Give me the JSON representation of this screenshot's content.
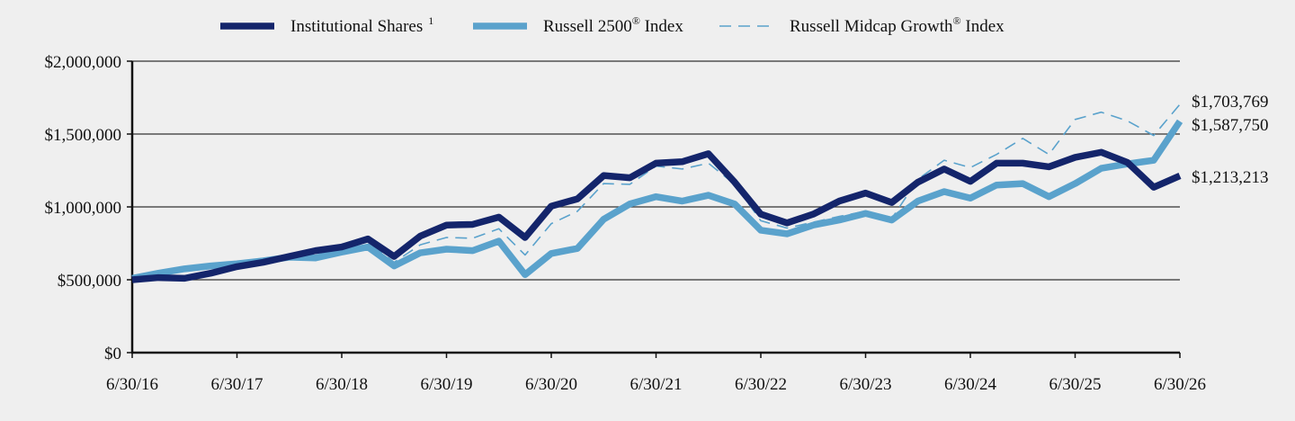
{
  "chart_data": {
    "type": "line",
    "x": [
      "6/30/16",
      "9/30/16",
      "12/31/16",
      "3/31/17",
      "6/30/17",
      "9/30/17",
      "12/31/17",
      "3/31/18",
      "6/30/18",
      "9/30/18",
      "12/31/18",
      "3/31/19",
      "6/30/19",
      "9/30/19",
      "12/31/19",
      "3/31/20",
      "6/30/20",
      "9/30/20",
      "12/31/20",
      "3/31/21",
      "6/30/21",
      "9/30/21",
      "12/31/21",
      "3/31/22",
      "6/30/22",
      "9/30/22",
      "12/31/22",
      "3/31/23",
      "6/30/23",
      "9/30/23",
      "12/31/23",
      "3/31/24",
      "6/30/24",
      "9/30/24",
      "12/31/24",
      "3/31/25",
      "6/30/25",
      "9/30/25",
      "12/31/25",
      "3/31/26",
      "6/30/26"
    ],
    "x_tick_labels": [
      "6/30/16",
      "6/30/17",
      "6/30/18",
      "6/30/19",
      "6/30/20",
      "6/30/21",
      "6/30/22",
      "6/30/23",
      "6/30/24",
      "6/30/25",
      "6/30/26"
    ],
    "y_tick_labels": [
      "$0",
      "$500,000",
      "$1,000,000",
      "$1,500,000",
      "$2,000,000"
    ],
    "ylim": [
      0,
      2000000
    ],
    "grid": true,
    "legend_position": "top",
    "series": [
      {
        "name": "Institutional Shares",
        "name_superscript": "1",
        "color": "#14256b",
        "style": "solid-thick",
        "end_label": "$1,213,213",
        "values": [
          500000,
          515000,
          510000,
          545000,
          590000,
          620000,
          660000,
          700000,
          725000,
          780000,
          660000,
          800000,
          875000,
          880000,
          930000,
          790000,
          1005000,
          1055000,
          1215000,
          1200000,
          1300000,
          1310000,
          1365000,
          1170000,
          950000,
          890000,
          950000,
          1040000,
          1095000,
          1030000,
          1170000,
          1260000,
          1175000,
          1300000,
          1300000,
          1275000,
          1340000,
          1375000,
          1305000,
          1135000,
          1213213
        ]
      },
      {
        "name": "Russell 2500",
        "name_registered": "®",
        "name_suffix": " Index",
        "color": "#5aa2cc",
        "style": "solid-medium",
        "end_label": "$1,587,750",
        "values": [
          510000,
          545000,
          575000,
          595000,
          610000,
          630000,
          655000,
          650000,
          690000,
          725000,
          595000,
          685000,
          710000,
          700000,
          765000,
          535000,
          680000,
          715000,
          915000,
          1020000,
          1070000,
          1040000,
          1080000,
          1020000,
          840000,
          815000,
          875000,
          910000,
          955000,
          910000,
          1040000,
          1105000,
          1060000,
          1150000,
          1160000,
          1070000,
          1160000,
          1265000,
          1295000,
          1320000,
          1587750
        ]
      },
      {
        "name": "Russell Midcap Growth",
        "name_registered": "®",
        "name_suffix": " Index",
        "color": "#5aa2cc",
        "style": "dashed-thin",
        "end_label": "$1,703,769",
        "values": [
          500000,
          520000,
          525000,
          550000,
          575000,
          610000,
          655000,
          680000,
          720000,
          760000,
          620000,
          740000,
          790000,
          785000,
          850000,
          670000,
          885000,
          970000,
          1160000,
          1155000,
          1280000,
          1260000,
          1300000,
          1155000,
          905000,
          855000,
          895000,
          935000,
          970000,
          920000,
          1190000,
          1320000,
          1270000,
          1360000,
          1470000,
          1360000,
          1600000,
          1650000,
          1590000,
          1490000,
          1703769
        ]
      }
    ]
  }
}
